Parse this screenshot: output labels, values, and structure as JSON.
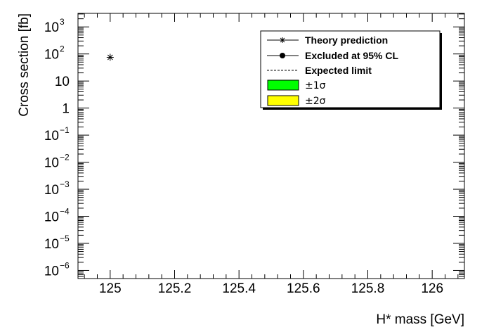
{
  "chart_data": {
    "type": "scatter",
    "xlabel": "H* mass [GeV]",
    "ylabel": "Cross section [fb]",
    "xlim": [
      124.9,
      126.1
    ],
    "ylim_log10": [
      -6.3,
      3.5
    ],
    "y_scale": "log",
    "grid": false,
    "legend_position": "top-right",
    "x_ticks": [
      {
        "value": 125.0,
        "label": "125"
      },
      {
        "value": 125.2,
        "label": "125.2"
      },
      {
        "value": 125.4,
        "label": "125.4"
      },
      {
        "value": 125.6,
        "label": "125.6"
      },
      {
        "value": 125.8,
        "label": "125.8"
      },
      {
        "value": 126.0,
        "label": "126"
      }
    ],
    "y_ticks": [
      {
        "exp": 3,
        "base": "10",
        "sup": "3"
      },
      {
        "exp": 2,
        "base": "10",
        "sup": "2"
      },
      {
        "exp": 1,
        "base": "10",
        "sup": ""
      },
      {
        "exp": 0,
        "base": "1",
        "sup": ""
      },
      {
        "exp": -1,
        "base": "10",
        "sup": "−1"
      },
      {
        "exp": -2,
        "base": "10",
        "sup": "−2"
      },
      {
        "exp": -3,
        "base": "10",
        "sup": "−3"
      },
      {
        "exp": -4,
        "base": "10",
        "sup": "−4"
      },
      {
        "exp": -5,
        "base": "10",
        "sup": "−5"
      },
      {
        "exp": -6,
        "base": "10",
        "sup": "−6"
      }
    ],
    "series": [
      {
        "name": "Theory prediction",
        "x": [
          125.0
        ],
        "y": [
          75
        ],
        "marker": "star"
      }
    ],
    "legend": [
      {
        "label": "Theory prediction",
        "kind": "line-star"
      },
      {
        "label": "Excluded at 95% CL",
        "kind": "line-dot"
      },
      {
        "label": "Expected limit",
        "kind": "dashed"
      },
      {
        "label": "±1σ",
        "kind": "box",
        "color": "#00ff00"
      },
      {
        "label": "±2σ",
        "kind": "box",
        "color": "#ffff00"
      }
    ]
  }
}
